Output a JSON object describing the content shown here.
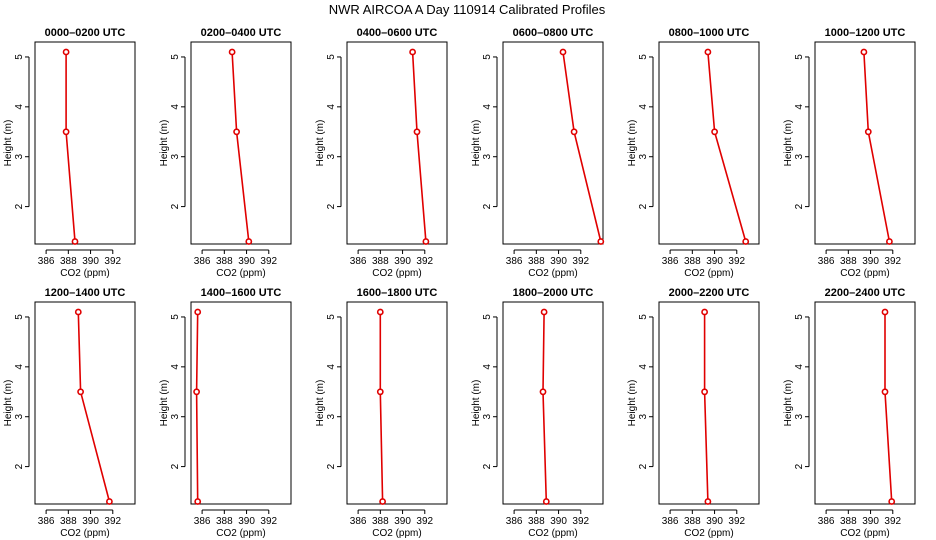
{
  "figure": {
    "title": "NWR AIRCOA A  Day 110914  Calibrated Profiles"
  },
  "colors": {
    "series": "#e00000",
    "axes": "#000000",
    "background": "#ffffff"
  },
  "chart_data": [
    {
      "type": "line",
      "title": "0000–0200 UTC",
      "xlabel": "CO2 (ppm)",
      "ylabel": "Height (m)",
      "xlim": [
        385,
        394
      ],
      "ylim": [
        1.25,
        5.3
      ],
      "x_ticks": [
        "386",
        "388",
        "390",
        "392"
      ],
      "y_ticks": [
        "2",
        "3",
        "4",
        "5"
      ],
      "series": [
        {
          "x": [
            388.6,
            387.8,
            387.8
          ],
          "y": [
            1.3,
            3.5,
            5.1
          ]
        }
      ]
    },
    {
      "type": "line",
      "title": "0200–0400 UTC",
      "xlabel": "CO2 (ppm)",
      "ylabel": "Height (m)",
      "xlim": [
        385,
        394
      ],
      "ylim": [
        1.25,
        5.3
      ],
      "x_ticks": [
        "386",
        "388",
        "390",
        "392"
      ],
      "y_ticks": [
        "2",
        "3",
        "4",
        "5"
      ],
      "series": [
        {
          "x": [
            390.2,
            389.1,
            388.7
          ],
          "y": [
            1.3,
            3.5,
            5.1
          ]
        }
      ]
    },
    {
      "type": "line",
      "title": "0400–0600 UTC",
      "xlabel": "CO2 (ppm)",
      "ylabel": "Height (m)",
      "xlim": [
        385,
        394
      ],
      "ylim": [
        1.25,
        5.3
      ],
      "x_ticks": [
        "386",
        "388",
        "390",
        "392"
      ],
      "y_ticks": [
        "2",
        "3",
        "4",
        "5"
      ],
      "series": [
        {
          "x": [
            392.1,
            391.3,
            390.9
          ],
          "y": [
            1.3,
            3.5,
            5.1
          ]
        }
      ]
    },
    {
      "type": "line",
      "title": "0600–0800 UTC",
      "xlabel": "CO2 (ppm)",
      "ylabel": "Height (m)",
      "xlim": [
        385,
        394
      ],
      "ylim": [
        1.25,
        5.3
      ],
      "x_ticks": [
        "386",
        "388",
        "390",
        "392"
      ],
      "y_ticks": [
        "2",
        "3",
        "4",
        "5"
      ],
      "series": [
        {
          "x": [
            393.8,
            391.4,
            390.4
          ],
          "y": [
            1.3,
            3.5,
            5.1
          ]
        }
      ]
    },
    {
      "type": "line",
      "title": "0800–1000 UTC",
      "xlabel": "CO2 (ppm)",
      "ylabel": "Height (m)",
      "xlim": [
        385,
        394
      ],
      "ylim": [
        1.25,
        5.3
      ],
      "x_ticks": [
        "386",
        "388",
        "390",
        "392"
      ],
      "y_ticks": [
        "2",
        "3",
        "4",
        "5"
      ],
      "series": [
        {
          "x": [
            392.8,
            390.0,
            389.4
          ],
          "y": [
            1.3,
            3.5,
            5.1
          ]
        }
      ]
    },
    {
      "type": "line",
      "title": "1000–1200 UTC",
      "xlabel": "CO2 (ppm)",
      "ylabel": "Height (m)",
      "xlim": [
        385,
        394
      ],
      "ylim": [
        1.25,
        5.3
      ],
      "x_ticks": [
        "386",
        "388",
        "390",
        "392"
      ],
      "y_ticks": [
        "2",
        "3",
        "4",
        "5"
      ],
      "series": [
        {
          "x": [
            391.7,
            389.8,
            389.4
          ],
          "y": [
            1.3,
            3.5,
            5.1
          ]
        }
      ]
    },
    {
      "type": "line",
      "title": "1200–1400 UTC",
      "xlabel": "CO2 (ppm)",
      "ylabel": "Height (m)",
      "xlim": [
        385,
        394
      ],
      "ylim": [
        1.25,
        5.3
      ],
      "x_ticks": [
        "386",
        "388",
        "390",
        "392"
      ],
      "y_ticks": [
        "2",
        "3",
        "4",
        "5"
      ],
      "series": [
        {
          "x": [
            391.7,
            389.1,
            388.9
          ],
          "y": [
            1.3,
            3.5,
            5.1
          ]
        }
      ]
    },
    {
      "type": "line",
      "title": "1400–1600 UTC",
      "xlabel": "CO2 (ppm)",
      "ylabel": "Height (m)",
      "xlim": [
        385,
        394
      ],
      "ylim": [
        1.25,
        5.3
      ],
      "x_ticks": [
        "386",
        "388",
        "390",
        "392"
      ],
      "y_ticks": [
        "2",
        "3",
        "4",
        "5"
      ],
      "series": [
        {
          "x": [
            385.6,
            385.5,
            385.6
          ],
          "y": [
            1.3,
            3.5,
            5.1
          ]
        }
      ]
    },
    {
      "type": "line",
      "title": "1600–1800 UTC",
      "xlabel": "CO2 (ppm)",
      "ylabel": "Height (m)",
      "xlim": [
        385,
        394
      ],
      "ylim": [
        1.25,
        5.3
      ],
      "x_ticks": [
        "386",
        "388",
        "390",
        "392"
      ],
      "y_ticks": [
        "2",
        "3",
        "4",
        "5"
      ],
      "series": [
        {
          "x": [
            388.2,
            388.0,
            388.0
          ],
          "y": [
            1.3,
            3.5,
            5.1
          ]
        }
      ]
    },
    {
      "type": "line",
      "title": "1800–2000 UTC",
      "xlabel": "CO2 (ppm)",
      "ylabel": "Height (m)",
      "xlim": [
        385,
        394
      ],
      "ylim": [
        1.25,
        5.3
      ],
      "x_ticks": [
        "386",
        "388",
        "390",
        "392"
      ],
      "y_ticks": [
        "2",
        "3",
        "4",
        "5"
      ],
      "series": [
        {
          "x": [
            388.9,
            388.6,
            388.7
          ],
          "y": [
            1.3,
            3.5,
            5.1
          ]
        }
      ]
    },
    {
      "type": "line",
      "title": "2000–2200 UTC",
      "xlabel": "CO2 (ppm)",
      "ylabel": "Height (m)",
      "xlim": [
        385,
        394
      ],
      "ylim": [
        1.25,
        5.3
      ],
      "x_ticks": [
        "386",
        "388",
        "390",
        "392"
      ],
      "y_ticks": [
        "2",
        "3",
        "4",
        "5"
      ],
      "series": [
        {
          "x": [
            389.4,
            389.1,
            389.1
          ],
          "y": [
            1.3,
            3.5,
            5.1
          ]
        }
      ]
    },
    {
      "type": "line",
      "title": "2200–2400 UTC",
      "xlabel": "CO2 (ppm)",
      "ylabel": "Height (m)",
      "xlim": [
        385,
        394
      ],
      "ylim": [
        1.25,
        5.3
      ],
      "x_ticks": [
        "386",
        "388",
        "390",
        "392"
      ],
      "y_ticks": [
        "2",
        "3",
        "4",
        "5"
      ],
      "series": [
        {
          "x": [
            391.9,
            391.3,
            391.3
          ],
          "y": [
            1.3,
            3.5,
            5.1
          ]
        }
      ]
    }
  ]
}
